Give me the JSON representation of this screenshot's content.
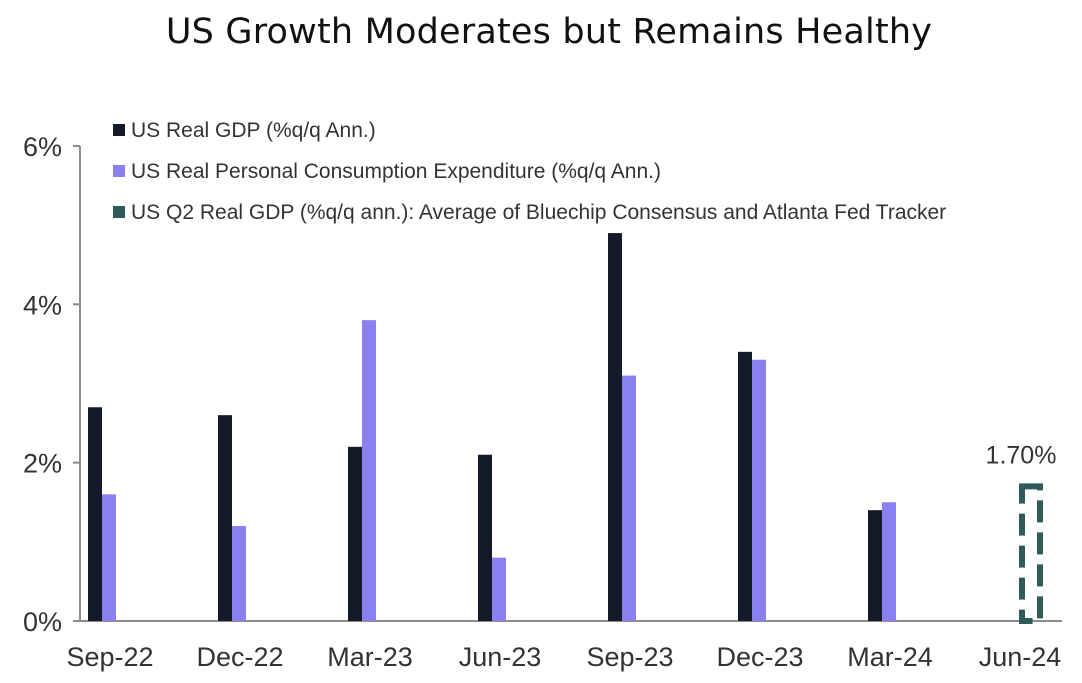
{
  "chart_data": {
    "type": "bar",
    "title": "US Growth Moderates but Remains Healthy",
    "xlabel": "",
    "ylabel": "",
    "ylim": [
      0,
      6
    ],
    "yticks": [
      "0%",
      "2%",
      "4%",
      "6%"
    ],
    "categories": [
      "Sep-22",
      "Dec-22",
      "Mar-23",
      "Jun-23",
      "Sep-23",
      "Dec-23",
      "Mar-24",
      "Jun-24"
    ],
    "series": [
      {
        "name": "US Real GDP (%q/q Ann.)",
        "color": "#141a2a",
        "values": [
          2.7,
          2.6,
          2.2,
          2.1,
          4.9,
          3.4,
          1.4,
          null
        ]
      },
      {
        "name": "US Real Personal Consumption Expenditure (%q/q Ann.)",
        "color": "#8b80f0",
        "values": [
          1.6,
          1.2,
          3.8,
          0.8,
          3.1,
          3.3,
          1.5,
          null
        ]
      },
      {
        "name": "US Q2 Real GDP (%q/q ann.): Average of Bluechip Consensus and Atlanta Fed Tracker",
        "color": "#2f5b5b",
        "style": "dashed-outline",
        "values": [
          null,
          null,
          null,
          null,
          null,
          null,
          null,
          1.7
        ]
      }
    ],
    "annotations": [
      {
        "category": "Jun-24",
        "text": "1.70%"
      }
    ],
    "legend_position": "top-left",
    "grid": false
  }
}
